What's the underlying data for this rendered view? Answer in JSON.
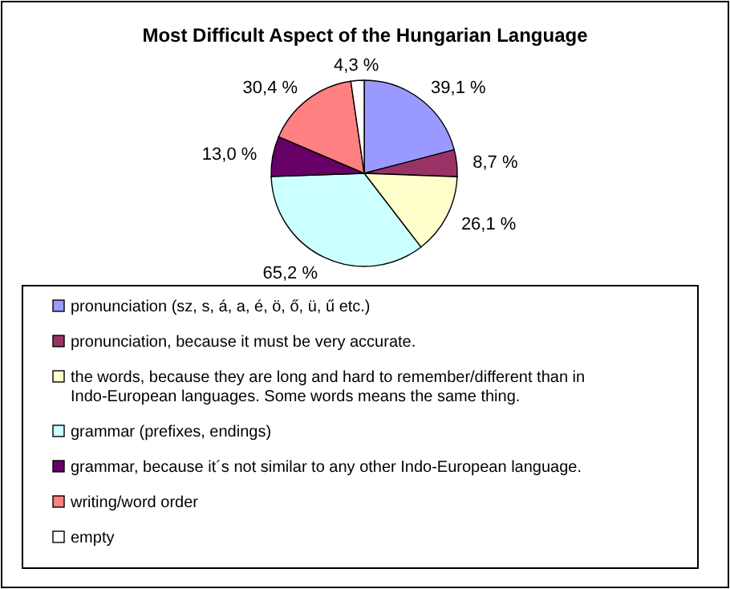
{
  "chart_data": {
    "type": "pie",
    "title": "Most Difficult Aspect of the Hungarian Language",
    "categories": [
      "pronunciation (sz, s, á, a, é, ö, ő, ü, ű etc.)",
      "pronunciation, because it must be very accurate.",
      "the words, because they are long and hard to remember/different than in Indo-European languages. Some words means the same thing.",
      "grammar (prefixes, endings)",
      "grammar, because it´s not similar to any other Indo-European language.",
      "writing/word order",
      "empty"
    ],
    "values": [
      39.1,
      8.7,
      26.1,
      65.2,
      13.0,
      30.4,
      4.3
    ],
    "value_labels": [
      "39,1 %",
      "8,7 %",
      "26,1 %",
      "65,2 %",
      "13,0 %",
      "30,4 %",
      "4,3 %"
    ],
    "colors": [
      "#9999ff",
      "#993366",
      "#ffffcc",
      "#ccffff",
      "#660066",
      "#ff8080",
      "#ffffff"
    ],
    "legend": "bottom"
  }
}
